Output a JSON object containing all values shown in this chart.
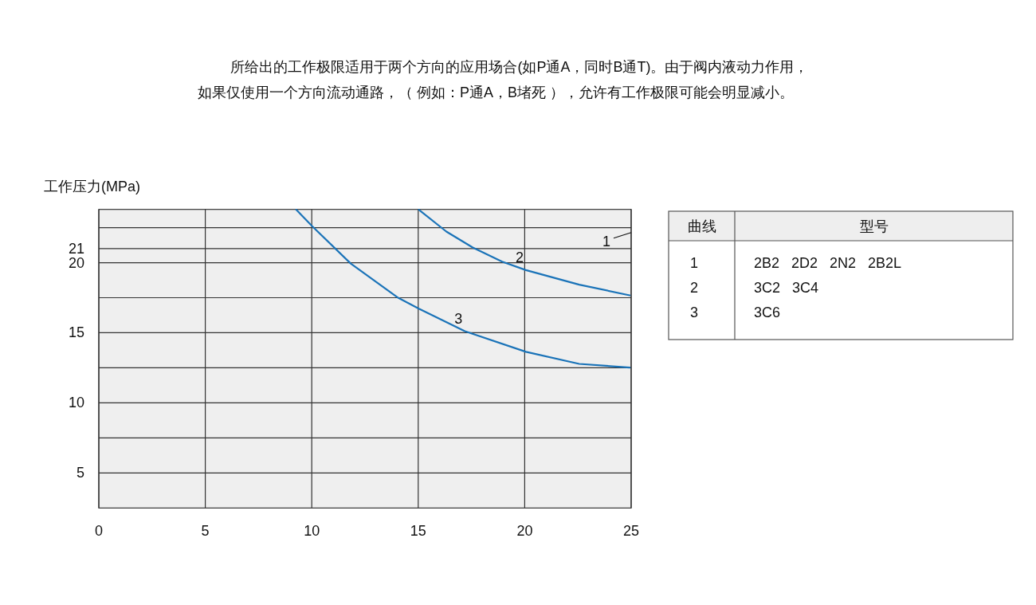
{
  "chart_data": [
    {
      "type": "line",
      "title": "所给出的工作极限适用于两个方向的应用场合(如P通A，同时B通T)。由于阀内液动力作用，",
      "subtitle": "如果仅使用一个方向流动通路，（ 例如：P通A，B堵死 ），允许有工作极限可能会明显减小。",
      "ylabel": "工作压力(MPa)",
      "xlim": [
        0,
        25
      ],
      "xticks": [
        0,
        5,
        10,
        15,
        20,
        25
      ],
      "ylim": [
        2.5,
        23.8
      ],
      "yticks": [
        5,
        {
          "value": 7.5,
          "label": null
        },
        10,
        {
          "value": 12.5,
          "label": null
        },
        15,
        {
          "value": 17.5,
          "label": null
        },
        20,
        21,
        {
          "value": 22.5,
          "label": null
        }
      ],
      "grid": true,
      "series": [
        {
          "name": "2",
          "color": "#1a73b8",
          "x": [
            15.03,
            16.32,
            17.56,
            18.94,
            20.06,
            22.56,
            24.93
          ],
          "values": [
            23.77,
            22.22,
            21.08,
            20.07,
            19.47,
            18.43,
            17.67
          ]
        },
        {
          "name": "3",
          "color": "#1a73b8",
          "x": [
            9.27,
            10.02,
            11.83,
            14.07,
            15.03,
            17.19,
            20.06,
            22.56,
            24.93
          ],
          "values": [
            23.78,
            22.6,
            19.94,
            17.48,
            16.72,
            15.11,
            13.64,
            12.78,
            12.52
          ]
        }
      ],
      "annotations": [
        "1"
      ]
    },
    {
      "type": "other",
      "categories": [
        "曲线",
        "型号"
      ],
      "annotations": [
        "1",
        "2B2   2D2   2N2   2B2L",
        "2",
        "3C2   3C4",
        "3",
        "3C6"
      ]
    }
  ]
}
